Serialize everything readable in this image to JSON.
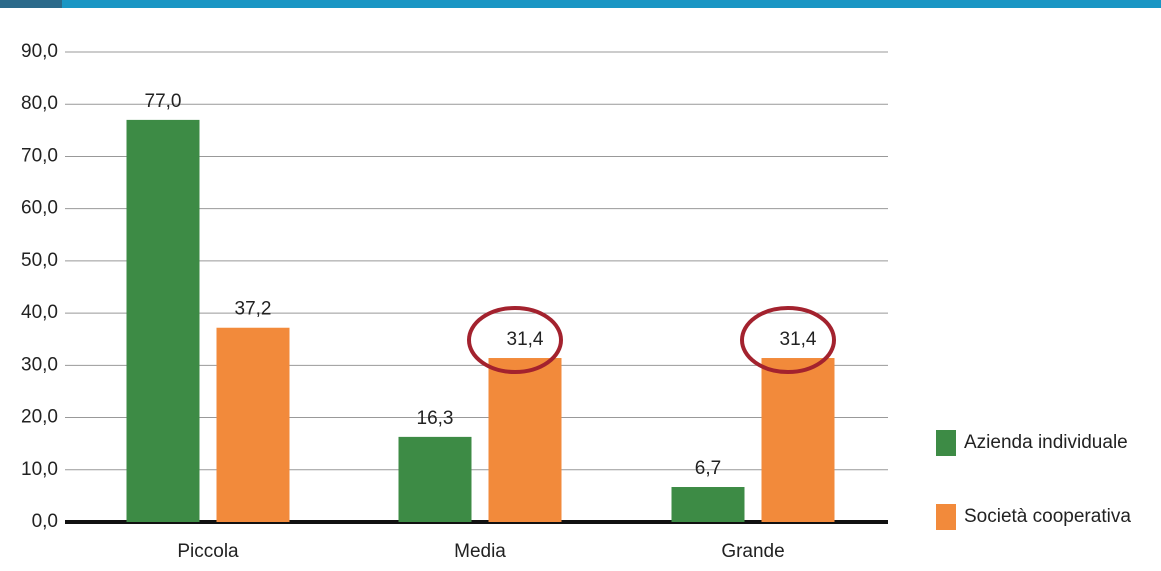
{
  "chart_data": {
    "type": "bar",
    "categories": [
      "Piccola",
      "Media",
      "Grande"
    ],
    "series": [
      {
        "name": "Azienda individuale",
        "color": "#3d8b45",
        "values": [
          77.0,
          16.3,
          6.7
        ],
        "value_labels": [
          "77,0",
          "16,3",
          "6,7"
        ]
      },
      {
        "name": "Società cooperativa",
        "color": "#f28a3b",
        "values": [
          37.2,
          31.4,
          31.4
        ],
        "value_labels": [
          "37,2",
          "31,4",
          "31,4"
        ]
      }
    ],
    "ylim": [
      0,
      90
    ],
    "yticks": [
      {
        "value": 0,
        "label": "0,0"
      },
      {
        "value": 10,
        "label": "10,0"
      },
      {
        "value": 20,
        "label": "20,0"
      },
      {
        "value": 30,
        "label": "30,0"
      },
      {
        "value": 40,
        "label": "40,0"
      },
      {
        "value": 50,
        "label": "50,0"
      },
      {
        "value": 60,
        "label": "60,0"
      },
      {
        "value": 70,
        "label": "70,0"
      },
      {
        "value": 80,
        "label": "80,0"
      },
      {
        "value": 90,
        "label": "90,0"
      }
    ],
    "grid": true,
    "legend": "right"
  }
}
